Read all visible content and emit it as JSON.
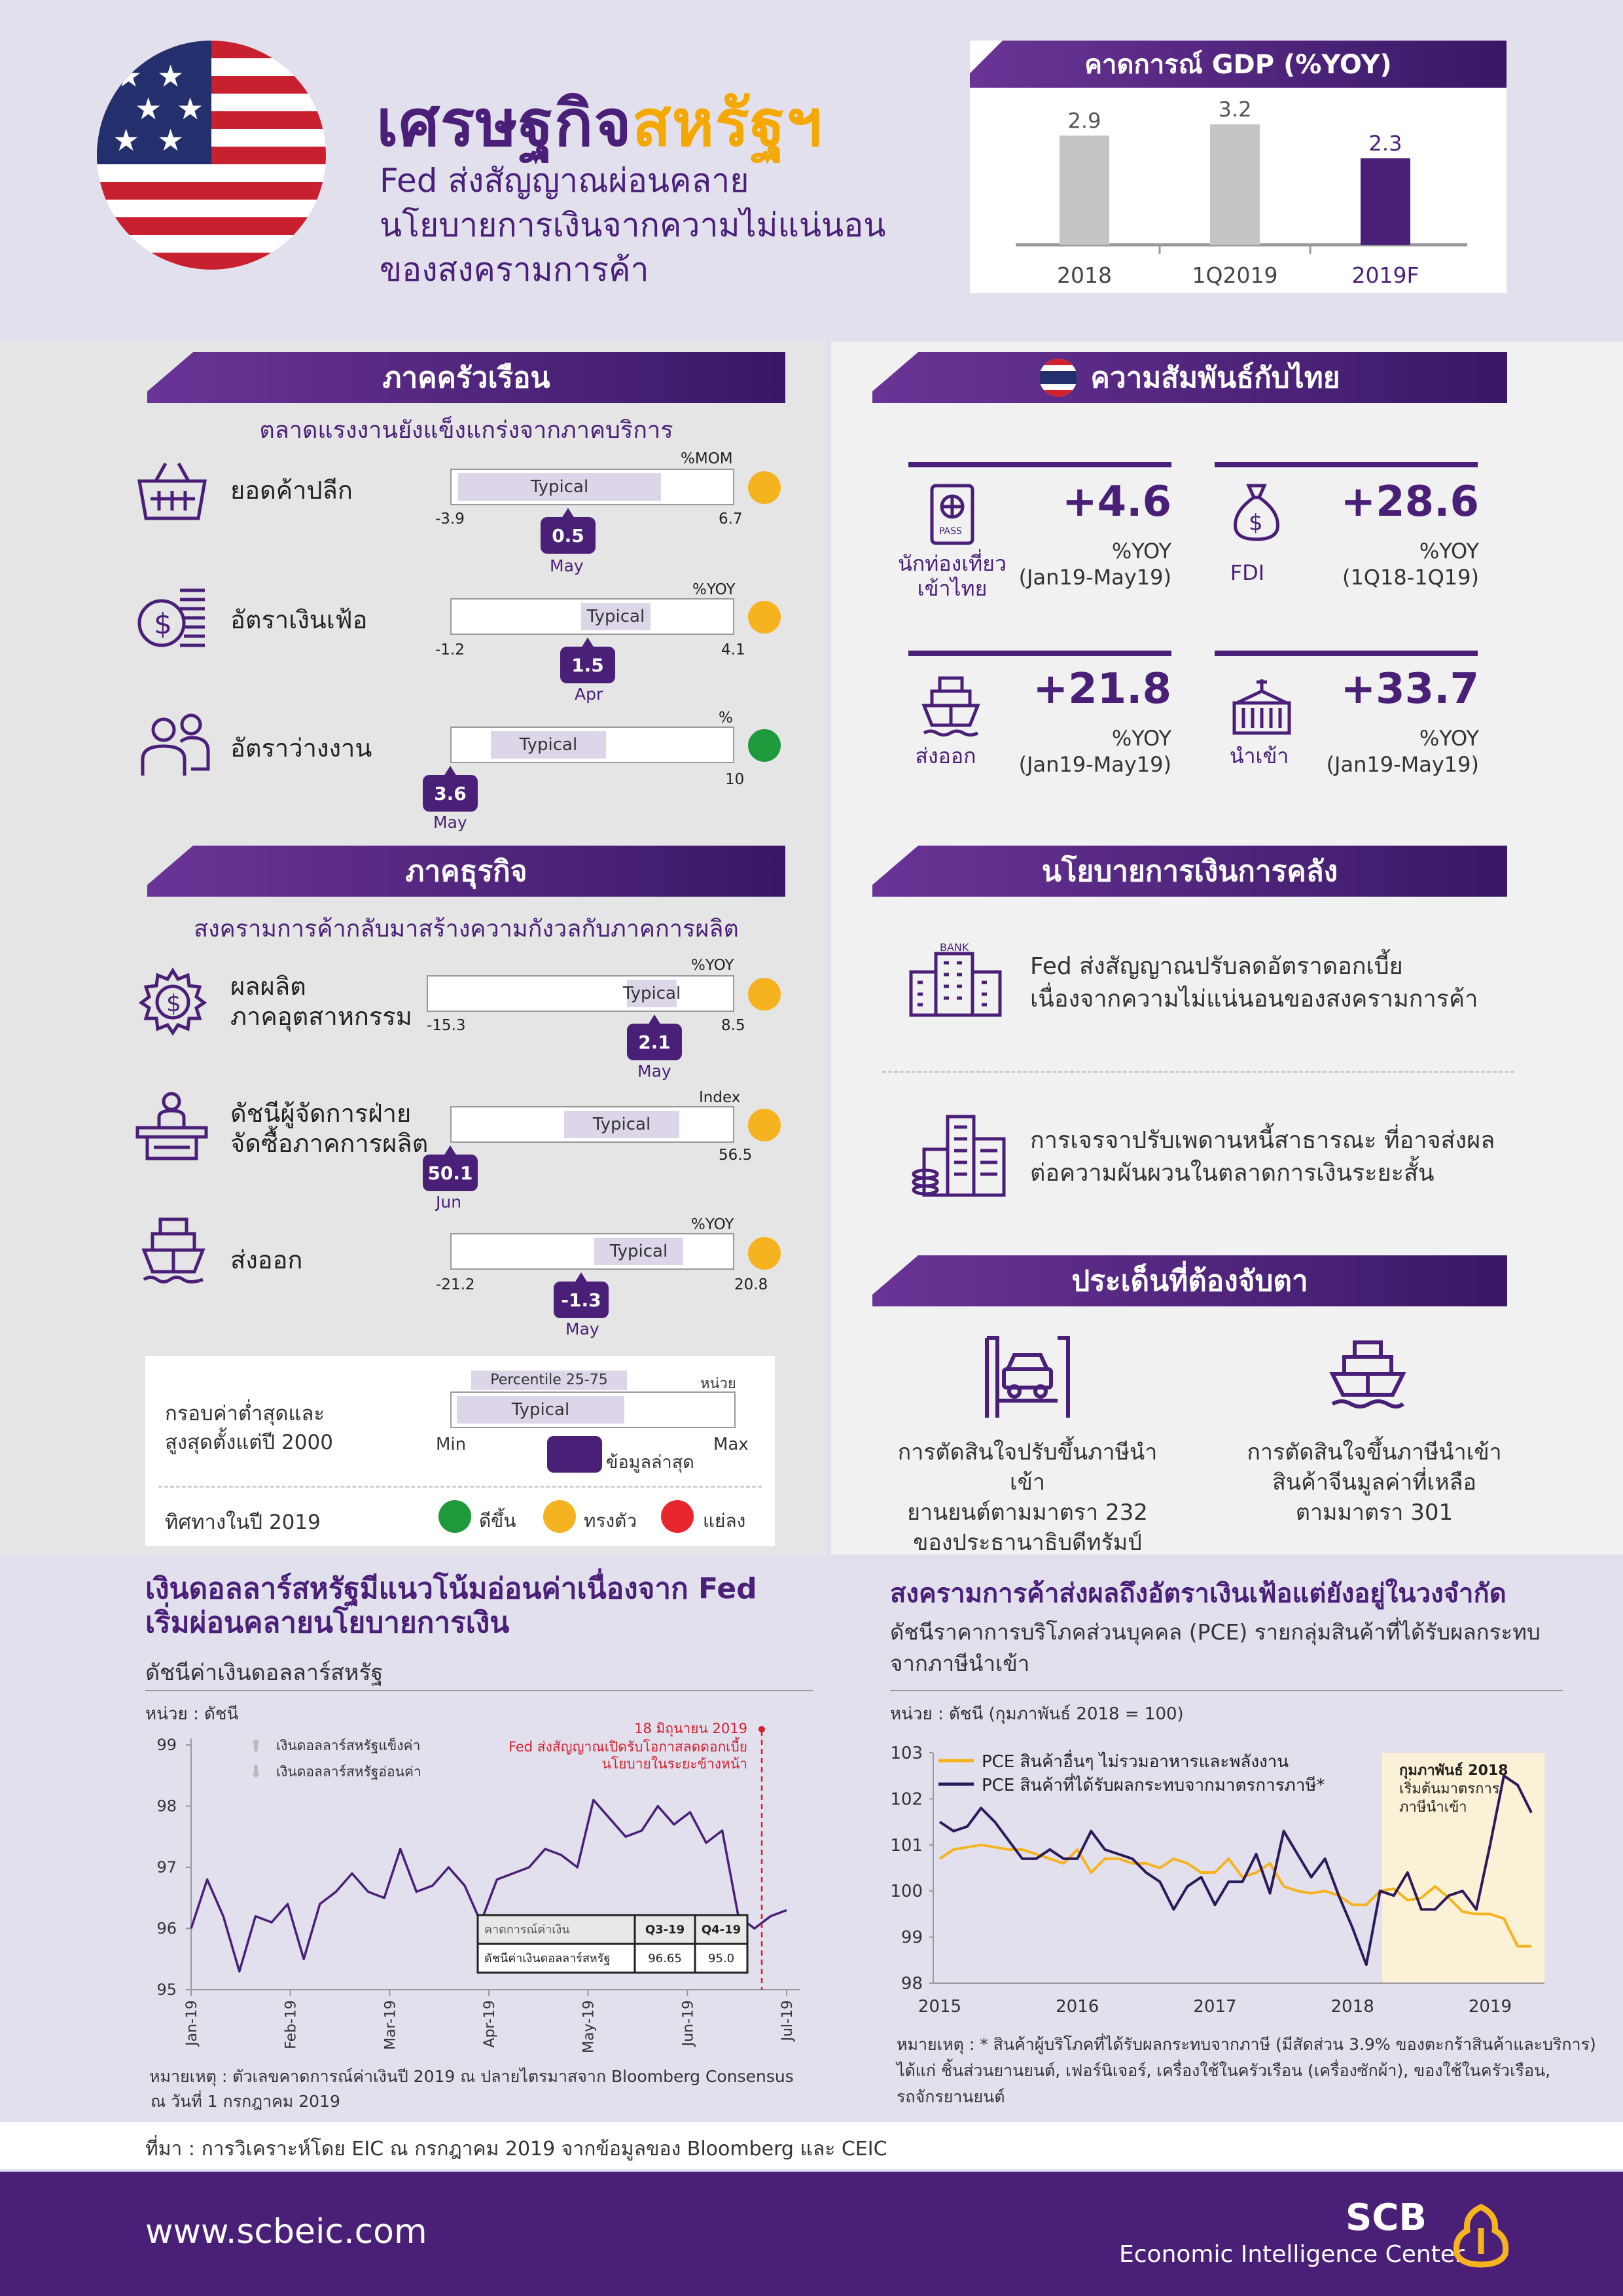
{
  "header": {
    "title_part1": "เศรษฐกิจ",
    "title_part2": "สหรัฐฯ",
    "subtitle_l1": "Fed ส่งสัญญาณผ่อนคลาย",
    "subtitle_l2": "นโยบายการเงินจากความไม่แน่นอน",
    "subtitle_l3": "ของสงครามการค้า"
  },
  "gdp": {
    "title": "คาดการณ์ GDP (%YOY)",
    "chart_data": {
      "type": "bar",
      "categories": [
        "2018",
        "1Q2019",
        "2019F"
      ],
      "values": [
        2.9,
        3.2,
        2.3
      ],
      "value_labels": [
        "2.9",
        "3.2",
        "2.3"
      ]
    }
  },
  "household": {
    "title": "ภาคครัวเรือน",
    "subtitle": "ตลาดแรงงานยังแข็งแกร่งจากภาคบริการ",
    "items": [
      {
        "label": "ยอดค้าปลีก",
        "unit": "%MOM",
        "min": "-3.9",
        "max": "6.7",
        "value": "0.5",
        "month": "May",
        "typical": "Typical",
        "status": "steady"
      },
      {
        "label": "อัตราเงินเฟ้อ",
        "unit": "%YOY",
        "min": "-1.2",
        "max": "4.1",
        "value": "1.5",
        "month": "Apr",
        "typical": "Typical",
        "status": "steady"
      },
      {
        "label": "อัตราว่างงาน",
        "unit": "%",
        "min": "",
        "max": "10",
        "value": "3.6",
        "month": "May",
        "typical": "Typical",
        "status": "good"
      }
    ]
  },
  "business": {
    "title": "ภาคธุรกิจ",
    "subtitle": "สงครามการค้ากลับมาสร้างความกังวลกับภาคการผลิต",
    "items": [
      {
        "label_l1": "ผลผลิต",
        "label_l2": "ภาคอุตสาหกรรม",
        "unit": "%YOY",
        "min": "-15.3",
        "max": "8.5",
        "value": "2.1",
        "month": "May",
        "typical": "Typical",
        "status": "steady"
      },
      {
        "label_l1": "ดัชนีผู้จัดการฝ่าย",
        "label_l2": "จัดซื้อภาคการผลิต",
        "unit": "Index",
        "min": "",
        "max": "56.5",
        "value": "50.1",
        "month": "Jun",
        "typical": "Typical",
        "status": "steady"
      },
      {
        "label_l1": "ส่งออก",
        "label_l2": "",
        "unit": "%YOY",
        "min": "-21.2",
        "max": "20.8",
        "value": "-1.3",
        "month": "May",
        "typical": "Typical",
        "status": "steady"
      }
    ]
  },
  "legend": {
    "range_l1": "กรอบค่าต่ำสุดและ",
    "range_l2": "สูงสุดตั้งแต่ปี 2000",
    "percentile": "Percentile 25-75",
    "unit": "หน่วย",
    "typical": "Typical",
    "min": "Min",
    "max": "Max",
    "latest": "ข้อมูลล่าสุด",
    "direction": "ทิศทางในปี 2019",
    "up": "ดีขึ้น",
    "flat": "ทรงตัว",
    "down": "แย่ลง",
    "colors": {
      "up": "#1e9a3c",
      "flat": "#f5b320",
      "down": "#e8262e"
    }
  },
  "thai": {
    "title": "ความสัมพันธ์กับไทย",
    "items": [
      {
        "label_l1": "นักท่องเที่ยว",
        "label_l2": "เข้าไทย",
        "value": "+4.6",
        "unit": "%YOY",
        "period": "(Jan19-May19)",
        "icon": "passport-icon"
      },
      {
        "label_l1": "FDI",
        "label_l2": "",
        "value": "+28.6",
        "unit": "%YOY",
        "period": "(1Q18-1Q19)",
        "icon": "money-bag-icon"
      },
      {
        "label_l1": "ส่งออก",
        "label_l2": "",
        "value": "+21.8",
        "unit": "%YOY",
        "period": "(Jan19-May19)",
        "icon": "ship-icon"
      },
      {
        "label_l1": "นำเข้า",
        "label_l2": "",
        "value": "+33.7",
        "unit": "%YOY",
        "period": "(Jan19-May19)",
        "icon": "container-icon"
      }
    ]
  },
  "policy": {
    "title": "นโยบายการเงินการคลัง",
    "bank_label": "BANK",
    "p1_l1": "Fed ส่งสัญญาณปรับลดอัตราดอกเบี้ย",
    "p1_l2": "เนื่องจากความไม่แน่นอนของสงครามการค้า",
    "p2_l1": "การเจรจาปรับเพดานหนี้สาธารณะ ที่อาจส่งผล",
    "p2_l2": "ต่อความผันผวนในตลาดการเงินระยะสั้น"
  },
  "watch": {
    "title": "ประเด็นที่ต้องจับตา",
    "i1": [
      "การตัดสินใจปรับขึ้นภาษีนำเข้า",
      "ยานยนต์ตามมาตรา 232",
      "ของประธานาธิบดีทรัมป์"
    ],
    "i2": [
      "การตัดสินใจขึ้นภาษีนำเข้า",
      "สินค้าจีนมูลค่าที่เหลือ",
      "ตามมาตรา 301"
    ]
  },
  "usd": {
    "title_l1": "เงินดอลลาร์สหรัฐมีแนวโน้มอ่อนค่าเนื่องจาก Fed",
    "title_l2": "เริ่มผ่อนคลายนโยบายการเงิน",
    "subtitle": "ดัชนีค่าเงินดอลลาร์สหรัฐ",
    "unit": "หน่วย : ดัชนี",
    "legend_up": "เงินดอลลาร์สหรัฐแข็งค่า",
    "legend_down": "เงินดอลลาร์สหรัฐอ่อนค่า",
    "annot_l1": "18 มิถุนายน 2019",
    "annot_l2": "Fed ส่งสัญญาณเปิดรับโอกาสลดดอกเบี้ย",
    "annot_l3": "นโยบายในระยะข้างหน้า",
    "table": {
      "h0": "คาดการณ์ค่าเงิน",
      "h1": "Q3-19",
      "h2": "Q4-19",
      "r0": "ดัชนีค่าเงินดอลลาร์สหรัฐ",
      "r1": "96.65",
      "r2": "95.0"
    },
    "note_l1": "หมายเหตุ : ตัวเลขคาดการณ์ค่าเงินปี 2019 ณ ปลายไตรมาสจาก Bloomberg Consensus",
    "note_l2": "ณ วันที่ 1 กรกฎาคม 2019",
    "chart_data": {
      "type": "line",
      "ylim": [
        95,
        99
      ],
      "yticks": [
        "95",
        "96",
        "97",
        "98",
        "99"
      ],
      "xticks": [
        "Jan-19",
        "Feb-19",
        "Mar-19",
        "Apr-19",
        "May-19",
        "Jun-19",
        "Jul-19"
      ],
      "x": [
        "Jan-19",
        "Jan-19",
        "Jan-19",
        "Jan-19",
        "Jan-19",
        "Jan-19",
        "Feb-19",
        "Feb-19",
        "Feb-19",
        "Feb-19",
        "Feb-19",
        "Feb-19",
        "Mar-19",
        "Mar-19",
        "Mar-19",
        "Mar-19",
        "Mar-19",
        "Mar-19",
        "Mar-19",
        "Apr-19",
        "Apr-19",
        "Apr-19",
        "Apr-19",
        "Apr-19",
        "Apr-19",
        "May-19",
        "May-19",
        "May-19",
        "May-19",
        "May-19",
        "May-19",
        "May-19",
        "Jun-19",
        "Jun-19",
        "Jun-19",
        "Jun-19",
        "Jun-19",
        "Jul-19"
      ],
      "y": [
        96.0,
        96.8,
        96.2,
        95.3,
        96.2,
        96.1,
        96.4,
        95.5,
        96.4,
        96.6,
        96.9,
        96.6,
        96.5,
        97.3,
        96.6,
        96.7,
        97.0,
        96.7,
        96.1,
        96.8,
        96.9,
        97.0,
        97.3,
        97.2,
        97.0,
        98.1,
        97.8,
        97.5,
        97.6,
        98.0,
        97.7,
        97.9,
        97.4,
        97.6,
        96.2,
        96.0,
        96.2,
        96.3
      ]
    }
  },
  "pce": {
    "title": "สงครามการค้าส่งผลถึงอัตราเงินเฟ้อแต่ยังอยู่ในวงจำกัด",
    "sub_l1": "ดัชนีราคาการบริโภคส่วนบุคคล (PCE) รายกลุ่มสินค้าที่ได้รับผลกระทบ",
    "sub_l2": "จากภาษีนำเข้า",
    "unit": "หน่วย : ดัชนี (กุมภาพันธ์ 2018 = 100)",
    "annot_l1": "กุมภาพันธ์ 2018",
    "annot_l2": "เริ่มต้นมาตรการ",
    "annot_l3": "ภาษีนำเข้า",
    "note_l1": "หมายเหตุ : * สินค้าผู้บริโภคที่ได้รับผลกระทบจากภาษี (มีสัดส่วน 3.9% ของตะกร้าสินค้าและบริการ)",
    "note_l2": "ได้แก่ ชิ้นส่วนยานยนต์, เฟอร์นิเจอร์, เครื่องใช้ในครัวเรือน (เครื่องซักผ้า), ของใช้ในครัวเรือน,",
    "note_l3": "รถจักรยานยนต์",
    "chart_data": {
      "type": "line",
      "ylim": [
        98,
        103
      ],
      "yticks": [
        "98",
        "99",
        "100",
        "101",
        "102",
        "103"
      ],
      "xticks": [
        "2015",
        "2016",
        "2017",
        "2018",
        "2019"
      ],
      "x": [
        2015.0,
        2015.1,
        2015.2,
        2015.3,
        2015.4,
        2015.5,
        2015.6,
        2015.7,
        2015.8,
        2015.9,
        2016.0,
        2016.1,
        2016.2,
        2016.3,
        2016.4,
        2016.5,
        2016.6,
        2016.7,
        2016.8,
        2016.9,
        2017.0,
        2017.1,
        2017.2,
        2017.3,
        2017.4,
        2017.5,
        2017.6,
        2017.7,
        2017.8,
        2017.9,
        2018.0,
        2018.1,
        2018.2,
        2018.3,
        2018.4,
        2018.5,
        2018.6,
        2018.7,
        2018.8,
        2018.9,
        2019.0,
        2019.1,
        2019.2,
        2019.3
      ],
      "series": [
        {
          "name": "PCE สินค้าอื่นๆ ไม่รวมอาหารและพลังงาน",
          "color": "#f5b320",
          "values": [
            100.7,
            100.9,
            100.95,
            101.0,
            100.95,
            100.9,
            100.9,
            100.8,
            100.7,
            100.6,
            100.9,
            100.4,
            100.7,
            100.7,
            100.6,
            100.6,
            100.5,
            100.7,
            100.6,
            100.4,
            100.4,
            100.7,
            100.3,
            100.4,
            100.6,
            100.1,
            100.0,
            99.95,
            100.0,
            99.9,
            99.7,
            99.7,
            100.0,
            100.05,
            99.8,
            99.85,
            100.1,
            99.85,
            99.55,
            99.5,
            99.5,
            99.4,
            98.8,
            98.8
          ]
        },
        {
          "name": "PCE สินค้าที่ได้รับผลกระทบจากมาตรการภาษี*",
          "color": "#2d1a5a",
          "values": [
            101.5,
            101.3,
            101.4,
            101.8,
            101.5,
            101.1,
            100.7,
            100.7,
            100.9,
            100.7,
            100.7,
            101.3,
            100.9,
            100.8,
            100.7,
            100.4,
            100.2,
            99.6,
            100.1,
            100.3,
            99.7,
            100.2,
            100.2,
            100.8,
            99.95,
            101.3,
            100.8,
            100.3,
            100.7,
            99.9,
            99.2,
            98.4,
            100.0,
            99.9,
            100.4,
            99.6,
            99.6,
            99.9,
            100.0,
            99.6,
            101.0,
            102.5,
            102.3,
            101.7
          ]
        }
      ]
    }
  },
  "source": "ที่มา : การวิเคราะห์โดย EIC ณ กรกฎาคม 2019 จากข้อมูลของ Bloomberg และ CEIC",
  "footer": {
    "url": "www.scbeic.com",
    "brand": "SCB",
    "center": "Economic Intelligence Center"
  }
}
